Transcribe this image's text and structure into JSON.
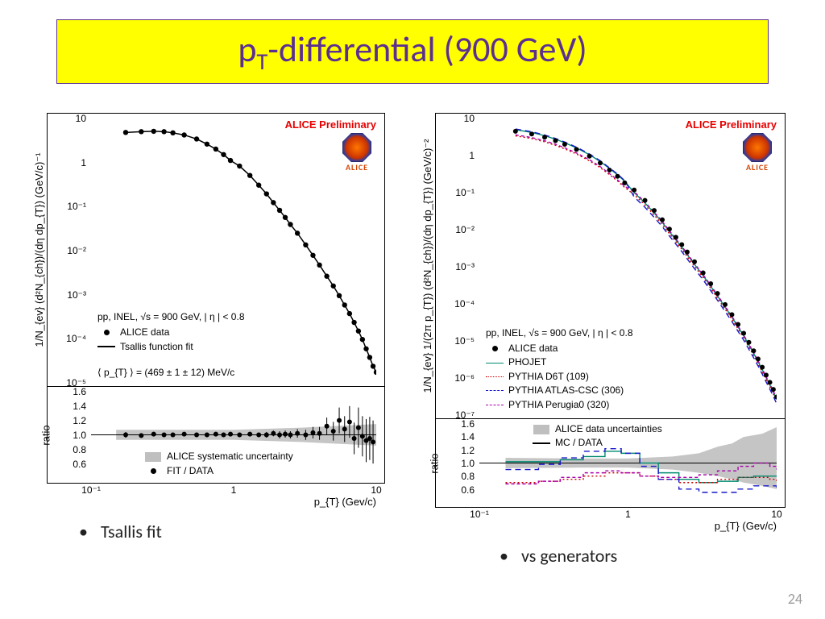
{
  "title_html": "p<sub>T</sub>-differential (900 GeV)",
  "slide_number": "24",
  "preliminary": "ALICE Preliminary",
  "alice_caption": "ALICE",
  "left": {
    "caption": "Tsallis fit",
    "ylabel": "1/N_{ev} (d²N_{ch})/(dη dp_{T}) (GeV/c)⁻¹",
    "xlabel": "p_{T} (Gev/c)",
    "main": {
      "ylog_min": -5,
      "ylog_max": 1,
      "xlog_min": -1,
      "xlog_max": 1,
      "yticks": [
        "10⁻⁵",
        "10⁻⁴",
        "10⁻³",
        "10⁻²",
        "10⁻¹",
        "1",
        "10"
      ],
      "legend_header": "pp, INEL, √s = 900 GeV, | η | < 0.8",
      "legend_items": [
        {
          "mark": "dot",
          "label": "ALICE data"
        },
        {
          "mark": "line-solid",
          "label": "Tsallis function fit"
        }
      ],
      "pt_text": "⟨ p_{T} ⟩ = (469 ± 1 ± 12) MeV/c",
      "data": [
        {
          "x": 0.175,
          "y": 4.8
        },
        {
          "x": 0.225,
          "y": 5.0
        },
        {
          "x": 0.275,
          "y": 5.1
        },
        {
          "x": 0.325,
          "y": 5.0
        },
        {
          "x": 0.375,
          "y": 4.7
        },
        {
          "x": 0.45,
          "y": 4.2
        },
        {
          "x": 0.55,
          "y": 3.4
        },
        {
          "x": 0.65,
          "y": 2.6
        },
        {
          "x": 0.75,
          "y": 2.0
        },
        {
          "x": 0.85,
          "y": 1.5
        },
        {
          "x": 0.95,
          "y": 1.1
        },
        {
          "x": 1.1,
          "y": 0.82
        },
        {
          "x": 1.3,
          "y": 0.5
        },
        {
          "x": 1.5,
          "y": 0.3
        },
        {
          "x": 1.7,
          "y": 0.19
        },
        {
          "x": 1.9,
          "y": 0.12
        },
        {
          "x": 2.1,
          "y": 0.08
        },
        {
          "x": 2.3,
          "y": 0.055
        },
        {
          "x": 2.5,
          "y": 0.038
        },
        {
          "x": 2.8,
          "y": 0.024
        },
        {
          "x": 3.2,
          "y": 0.013
        },
        {
          "x": 3.6,
          "y": 0.0075
        },
        {
          "x": 4.0,
          "y": 0.0045
        },
        {
          "x": 4.5,
          "y": 0.0025
        },
        {
          "x": 5.0,
          "y": 0.0015
        },
        {
          "x": 5.5,
          "y": 0.0009
        },
        {
          "x": 6.0,
          "y": 0.00055
        },
        {
          "x": 6.5,
          "y": 0.00035
        },
        {
          "x": 7.0,
          "y": 0.00022
        },
        {
          "x": 7.5,
          "y": 0.00014
        },
        {
          "x": 8.0,
          "y": 9e-05
        },
        {
          "x": 8.5,
          "y": 5.5e-05
        },
        {
          "x": 9.0,
          "y": 3.5e-05
        },
        {
          "x": 9.5,
          "y": 2.2e-05
        },
        {
          "x": 10.0,
          "y": 1.6e-05
        }
      ]
    },
    "ratio": {
      "ylabel": "ratio",
      "ymin": 0.4,
      "ymax": 1.6,
      "ystep": 0.2,
      "xticks": [
        "10⁻¹",
        "1",
        "10"
      ],
      "legend_items": [
        {
          "mark": "box-grey",
          "label": "ALICE systematic uncertainty"
        },
        {
          "mark": "dot",
          "label": "FIT / DATA"
        }
      ],
      "data": [
        {
          "x": 0.175,
          "y": 1.0,
          "e": 0.04
        },
        {
          "x": 0.225,
          "y": 0.99,
          "e": 0.03
        },
        {
          "x": 0.275,
          "y": 1.01,
          "e": 0.03
        },
        {
          "x": 0.325,
          "y": 1.0,
          "e": 0.03
        },
        {
          "x": 0.375,
          "y": 1.0,
          "e": 0.03
        },
        {
          "x": 0.45,
          "y": 1.01,
          "e": 0.03
        },
        {
          "x": 0.55,
          "y": 1.0,
          "e": 0.03
        },
        {
          "x": 0.65,
          "y": 1.0,
          "e": 0.03
        },
        {
          "x": 0.75,
          "y": 1.01,
          "e": 0.03
        },
        {
          "x": 0.85,
          "y": 1.0,
          "e": 0.03
        },
        {
          "x": 0.95,
          "y": 1.01,
          "e": 0.03
        },
        {
          "x": 1.1,
          "y": 1.0,
          "e": 0.03
        },
        {
          "x": 1.3,
          "y": 1.01,
          "e": 0.03
        },
        {
          "x": 1.5,
          "y": 1.0,
          "e": 0.03
        },
        {
          "x": 1.7,
          "y": 1.0,
          "e": 0.04
        },
        {
          "x": 1.9,
          "y": 1.02,
          "e": 0.04
        },
        {
          "x": 2.1,
          "y": 1.0,
          "e": 0.05
        },
        {
          "x": 2.3,
          "y": 1.01,
          "e": 0.05
        },
        {
          "x": 2.5,
          "y": 1.0,
          "e": 0.05
        },
        {
          "x": 2.8,
          "y": 1.02,
          "e": 0.06
        },
        {
          "x": 3.2,
          "y": 1.0,
          "e": 0.07
        },
        {
          "x": 3.6,
          "y": 1.03,
          "e": 0.08
        },
        {
          "x": 4.0,
          "y": 1.02,
          "e": 0.09
        },
        {
          "x": 4.5,
          "y": 1.12,
          "e": 0.12
        },
        {
          "x": 5.0,
          "y": 1.05,
          "e": 0.13
        },
        {
          "x": 5.5,
          "y": 1.2,
          "e": 0.18
        },
        {
          "x": 6.0,
          "y": 1.08,
          "e": 0.18
        },
        {
          "x": 6.5,
          "y": 1.18,
          "e": 0.22
        },
        {
          "x": 7.0,
          "y": 0.95,
          "e": 0.22
        },
        {
          "x": 7.5,
          "y": 1.1,
          "e": 0.28
        },
        {
          "x": 8.0,
          "y": 0.98,
          "e": 0.28
        },
        {
          "x": 8.5,
          "y": 0.92,
          "e": 0.3
        },
        {
          "x": 9.0,
          "y": 0.95,
          "e": 0.3
        },
        {
          "x": 9.5,
          "y": 0.9,
          "e": 0.3
        }
      ]
    }
  },
  "right": {
    "caption": "vs generators",
    "ylabel": "1/N_{ev} 1/(2π p_{T}) (d²N_{ch})/(dη dp_{T}) (GeV/c)⁻²",
    "xlabel": "p_{T} (Gev/c)",
    "main": {
      "ylog_min": -7,
      "ylog_max": 1,
      "xlog_min": -1,
      "xlog_max": 1,
      "yticks": [
        "10⁻⁷",
        "10⁻⁶",
        "10⁻⁵",
        "10⁻⁴",
        "10⁻³",
        "10⁻²",
        "10⁻¹",
        "1",
        "10"
      ],
      "legend_header": "pp, INEL, √s = 900 GeV, | η | < 0.8",
      "legend_items": [
        {
          "mark": "dot",
          "label": "ALICE data"
        },
        {
          "mark": "line-teal",
          "label": "PHOJET"
        },
        {
          "mark": "line-red-dot",
          "label": "PYTHIA D6T (109)"
        },
        {
          "mark": "line-blue-dash",
          "label": "PYTHIA ATLAS-CSC (306)"
        },
        {
          "mark": "line-mag-dash",
          "label": "PYTHIA Perugia0 (320)"
        }
      ],
      "colors": {
        "data": "#000000",
        "phojet": "#008b6f",
        "d6t": "#cc0000",
        "atlas": "#1818cc",
        "perugia": "#aa00aa"
      },
      "data": [
        {
          "x": 0.175,
          "y": 4.5
        },
        {
          "x": 0.225,
          "y": 3.8
        },
        {
          "x": 0.275,
          "y": 3.1
        },
        {
          "x": 0.325,
          "y": 2.5
        },
        {
          "x": 0.375,
          "y": 2.0
        },
        {
          "x": 0.45,
          "y": 1.45
        },
        {
          "x": 0.55,
          "y": 0.95
        },
        {
          "x": 0.65,
          "y": 0.62
        },
        {
          "x": 0.75,
          "y": 0.4
        },
        {
          "x": 0.85,
          "y": 0.27
        },
        {
          "x": 0.95,
          "y": 0.18
        },
        {
          "x": 1.1,
          "y": 0.115
        },
        {
          "x": 1.3,
          "y": 0.06
        },
        {
          "x": 1.5,
          "y": 0.032
        },
        {
          "x": 1.7,
          "y": 0.018
        },
        {
          "x": 1.9,
          "y": 0.01
        },
        {
          "x": 2.1,
          "y": 0.006
        },
        {
          "x": 2.3,
          "y": 0.0038
        },
        {
          "x": 2.5,
          "y": 0.0024
        },
        {
          "x": 2.8,
          "y": 0.0013
        },
        {
          "x": 3.2,
          "y": 0.00065
        },
        {
          "x": 3.6,
          "y": 0.00033
        },
        {
          "x": 4.0,
          "y": 0.00018
        },
        {
          "x": 4.5,
          "y": 9e-05
        },
        {
          "x": 5.0,
          "y": 4.8e-05
        },
        {
          "x": 5.5,
          "y": 2.6e-05
        },
        {
          "x": 6.0,
          "y": 1.5e-05
        },
        {
          "x": 6.5,
          "y": 8.5e-06
        },
        {
          "x": 7.0,
          "y": 5e-06
        },
        {
          "x": 7.5,
          "y": 3e-06
        },
        {
          "x": 8.0,
          "y": 1.8e-06
        },
        {
          "x": 8.5,
          "y": 1.1e-06
        },
        {
          "x": 9.0,
          "y": 7e-07
        },
        {
          "x": 9.5,
          "y": 4.5e-07
        },
        {
          "x": 10.0,
          "y": 2.8e-07
        }
      ]
    },
    "ratio": {
      "ylabel": "ratio",
      "ymin": 0.4,
      "ymax": 1.6,
      "ystep": 0.2,
      "xticks": [
        "10⁻¹",
        "1",
        "10"
      ],
      "legend_items": [
        {
          "mark": "box-grey",
          "label": "ALICE data uncertainties"
        },
        {
          "mark": "line-solid",
          "label": "MC / DATA"
        }
      ],
      "series": {
        "phojet": [
          {
            "x": 0.15,
            "y": 1.02
          },
          {
            "x": 0.25,
            "y": 1.02
          },
          {
            "x": 0.35,
            "y": 1.05
          },
          {
            "x": 0.5,
            "y": 1.1
          },
          {
            "x": 0.7,
            "y": 1.18
          },
          {
            "x": 0.9,
            "y": 1.15
          },
          {
            "x": 1.2,
            "y": 1.0
          },
          {
            "x": 1.6,
            "y": 0.85
          },
          {
            "x": 2.2,
            "y": 0.75
          },
          {
            "x": 3.0,
            "y": 0.7
          },
          {
            "x": 4.0,
            "y": 0.72
          },
          {
            "x": 5.5,
            "y": 0.78
          },
          {
            "x": 7.0,
            "y": 0.8
          },
          {
            "x": 9.0,
            "y": 0.8
          },
          {
            "x": 10.0,
            "y": 0.8
          }
        ],
        "d6t": [
          {
            "x": 0.15,
            "y": 0.7
          },
          {
            "x": 0.25,
            "y": 0.72
          },
          {
            "x": 0.35,
            "y": 0.75
          },
          {
            "x": 0.5,
            "y": 0.8
          },
          {
            "x": 0.7,
            "y": 0.85
          },
          {
            "x": 0.9,
            "y": 0.85
          },
          {
            "x": 1.2,
            "y": 0.8
          },
          {
            "x": 1.6,
            "y": 0.75
          },
          {
            "x": 2.2,
            "y": 0.7
          },
          {
            "x": 3.0,
            "y": 0.7
          },
          {
            "x": 4.0,
            "y": 0.75
          },
          {
            "x": 5.5,
            "y": 0.78
          },
          {
            "x": 7.0,
            "y": 0.78
          },
          {
            "x": 9.0,
            "y": 0.75
          },
          {
            "x": 10.0,
            "y": 0.72
          }
        ],
        "atlas": [
          {
            "x": 0.15,
            "y": 0.9
          },
          {
            "x": 0.25,
            "y": 0.98
          },
          {
            "x": 0.35,
            "y": 1.08
          },
          {
            "x": 0.5,
            "y": 1.18
          },
          {
            "x": 0.7,
            "y": 1.22
          },
          {
            "x": 0.9,
            "y": 1.15
          },
          {
            "x": 1.2,
            "y": 0.95
          },
          {
            "x": 1.6,
            "y": 0.75
          },
          {
            "x": 2.2,
            "y": 0.6
          },
          {
            "x": 3.0,
            "y": 0.55
          },
          {
            "x": 4.0,
            "y": 0.55
          },
          {
            "x": 5.5,
            "y": 0.6
          },
          {
            "x": 7.0,
            "y": 0.65
          },
          {
            "x": 9.0,
            "y": 0.65
          },
          {
            "x": 10.0,
            "y": 0.62
          }
        ],
        "perugia": [
          {
            "x": 0.15,
            "y": 0.68
          },
          {
            "x": 0.25,
            "y": 0.72
          },
          {
            "x": 0.35,
            "y": 0.78
          },
          {
            "x": 0.5,
            "y": 0.85
          },
          {
            "x": 0.7,
            "y": 0.88
          },
          {
            "x": 0.9,
            "y": 0.85
          },
          {
            "x": 1.2,
            "y": 0.8
          },
          {
            "x": 1.6,
            "y": 0.78
          },
          {
            "x": 2.2,
            "y": 0.78
          },
          {
            "x": 3.0,
            "y": 0.82
          },
          {
            "x": 4.0,
            "y": 0.88
          },
          {
            "x": 5.5,
            "y": 0.95
          },
          {
            "x": 7.0,
            "y": 1.0
          },
          {
            "x": 9.0,
            "y": 0.95
          },
          {
            "x": 10.0,
            "y": 0.9
          }
        ]
      },
      "band": [
        {
          "x": 0.15,
          "lo": 0.92,
          "hi": 1.08
        },
        {
          "x": 0.5,
          "lo": 0.93,
          "hi": 1.07
        },
        {
          "x": 1.0,
          "lo": 0.93,
          "hi": 1.07
        },
        {
          "x": 2.0,
          "lo": 0.9,
          "hi": 1.1
        },
        {
          "x": 3.0,
          "lo": 0.85,
          "hi": 1.15
        },
        {
          "x": 4.0,
          "lo": 0.8,
          "hi": 1.25
        },
        {
          "x": 5.0,
          "lo": 0.75,
          "hi": 1.3
        },
        {
          "x": 6.0,
          "lo": 0.7,
          "hi": 1.4
        },
        {
          "x": 8.0,
          "lo": 0.65,
          "hi": 1.45
        },
        {
          "x": 10.0,
          "lo": 0.6,
          "hi": 1.55
        }
      ]
    }
  }
}
